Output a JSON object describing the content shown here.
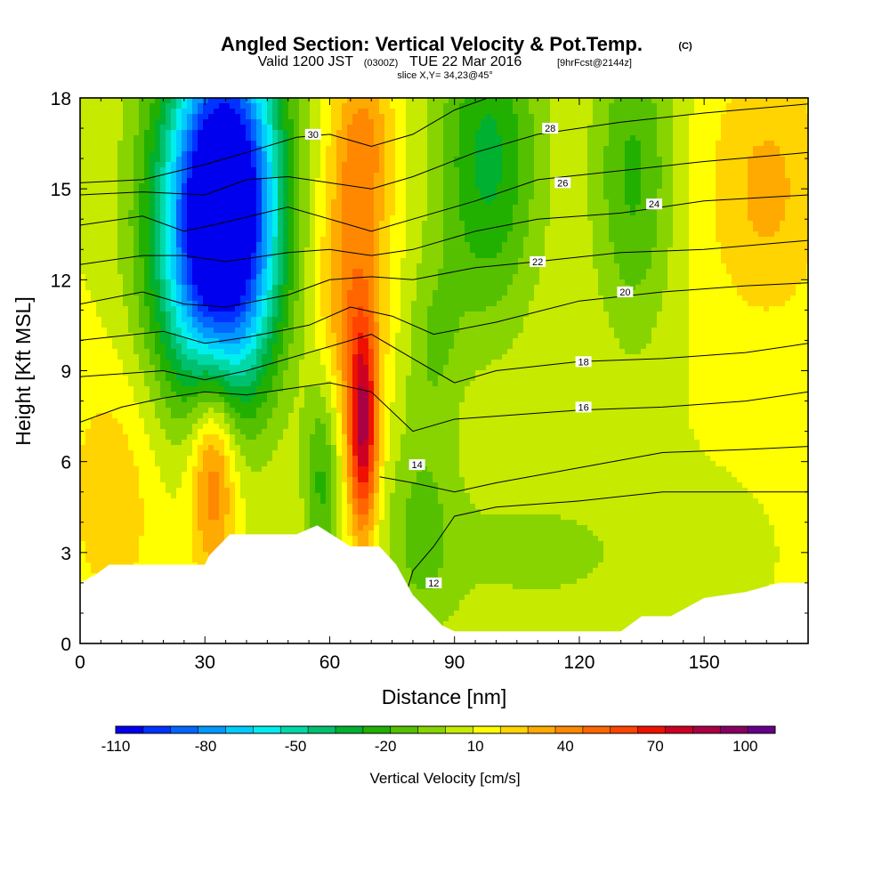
{
  "chart_data": {
    "type": "heatmap",
    "title": "Angled Section: Vertical Velocity & Pot.Temp.",
    "title_mark": "(C)",
    "subtitle_valid": "Valid 1200 JST",
    "subtitle_utc": "(0300Z)",
    "subtitle_date": "TUE 22 Mar 2016",
    "subtitle_fcst": "[9hrFcst@2144z]",
    "slice_label": "slice X,Y= 34,23@45°",
    "xlabel": "Distance [nm]",
    "ylabel": "Height [Kft MSL]",
    "xlim": [
      0,
      175
    ],
    "ylim": [
      0,
      18
    ],
    "x_ticks": [
      0,
      30,
      60,
      90,
      120,
      150
    ],
    "x_tick_labels": [
      "0",
      "30",
      "60",
      "90",
      "120",
      "150"
    ],
    "y_ticks": [
      0,
      3,
      6,
      9,
      12,
      15,
      18
    ],
    "y_tick_labels": [
      "0",
      "3",
      "6",
      "9",
      "12",
      "15",
      "18"
    ],
    "colorbar": {
      "label": "Vertical Velocity [cm/s]",
      "colors": [
        "#0000ee",
        "#0033ff",
        "#0066ff",
        "#0099ff",
        "#00ccff",
        "#00eeee",
        "#00d8a8",
        "#00c070",
        "#00b030",
        "#22b000",
        "#55c000",
        "#88d400",
        "#c6ea00",
        "#ffff00",
        "#ffd400",
        "#ffaa00",
        "#ff8800",
        "#ff6600",
        "#ff4400",
        "#ee1100",
        "#cc0022",
        "#aa0044",
        "#88005f",
        "#660088"
      ],
      "tick_values": [
        -110,
        -80,
        -50,
        -20,
        10,
        40,
        70,
        100
      ],
      "tick_labels": [
        "-110",
        "-80",
        "-50",
        "-20",
        "10",
        "40",
        "70",
        "100"
      ],
      "range": [
        -110,
        110
      ]
    },
    "terrain_kft": [
      [
        0,
        2.0
      ],
      [
        4,
        2.3
      ],
      [
        7,
        2.6
      ],
      [
        30,
        2.6
      ],
      [
        31,
        2.9
      ],
      [
        36,
        3.6
      ],
      [
        52,
        3.6
      ],
      [
        57,
        3.9
      ],
      [
        65,
        3.2
      ],
      [
        72,
        3.2
      ],
      [
        76,
        2.6
      ],
      [
        80,
        1.6
      ],
      [
        87,
        0.6
      ],
      [
        90,
        0.4
      ],
      [
        130,
        0.4
      ],
      [
        135,
        0.9
      ],
      [
        142,
        0.9
      ],
      [
        150,
        1.5
      ],
      [
        160,
        1.7
      ],
      [
        168,
        2.0
      ],
      [
        175,
        2.0
      ]
    ],
    "velocity_features": [
      {
        "x": 36,
        "y": 15.5,
        "w": -100,
        "sx": 9,
        "sy": 4.0
      },
      {
        "x": 33,
        "y": 12.0,
        "w": -60,
        "sx": 10,
        "sy": 3.5
      },
      {
        "x": 25,
        "y": 15.0,
        "w": -25,
        "sx": 10,
        "sy": 4.0
      },
      {
        "x": 58,
        "y": 5.5,
        "w": -30,
        "sx": 3,
        "sy": 2.5
      },
      {
        "x": 68,
        "y": 7.0,
        "w": 70,
        "sx": 2.5,
        "sy": 2.5
      },
      {
        "x": 65,
        "y": 11.5,
        "w": 30,
        "sx": 6,
        "sy": 3.0
      },
      {
        "x": 68,
        "y": 16.5,
        "w": 28,
        "sx": 5,
        "sy": 2.0
      },
      {
        "x": 32,
        "y": 6.0,
        "w": 45,
        "sx": 4,
        "sy": 2.5
      },
      {
        "x": 8,
        "y": 5.0,
        "w": 15,
        "sx": 8,
        "sy": 3.0
      },
      {
        "x": 98,
        "y": 16.0,
        "w": -40,
        "sx": 9,
        "sy": 4.0
      },
      {
        "x": 133,
        "y": 15.5,
        "w": -30,
        "sx": 7,
        "sy": 4.0
      },
      {
        "x": 82,
        "y": 4.0,
        "w": -18,
        "sx": 6,
        "sy": 3.0
      },
      {
        "x": 110,
        "y": 3.0,
        "w": -12,
        "sx": 25,
        "sy": 2.0
      },
      {
        "x": 85,
        "y": 10.0,
        "w": -15,
        "sx": 5,
        "sy": 2.0
      },
      {
        "x": 165,
        "y": 15.0,
        "w": 20,
        "sx": 10,
        "sy": 3.0
      }
    ],
    "theta_contours": [
      {
        "label": "12",
        "points": [
          [
            76,
            0.5
          ],
          [
            80,
            2.4
          ],
          [
            85,
            3.2
          ],
          [
            90,
            4.2
          ],
          [
            100,
            4.5
          ],
          [
            120,
            4.7
          ],
          [
            140,
            5.0
          ],
          [
            175,
            5.0
          ]
        ],
        "label_at": [
          85,
          2.0
        ]
      },
      {
        "label": "14",
        "points": [
          [
            72,
            5.5
          ],
          [
            80,
            5.3
          ],
          [
            90,
            5.0
          ],
          [
            100,
            5.3
          ],
          [
            120,
            5.8
          ],
          [
            140,
            6.3
          ],
          [
            160,
            6.4
          ],
          [
            175,
            6.5
          ]
        ],
        "label_at": [
          81,
          5.9
        ]
      },
      {
        "label": "16",
        "points": [
          [
            0,
            7.3
          ],
          [
            10,
            7.8
          ],
          [
            20,
            8.1
          ],
          [
            30,
            8.3
          ],
          [
            40,
            8.2
          ],
          [
            50,
            8.4
          ],
          [
            60,
            8.6
          ],
          [
            70,
            8.3
          ],
          [
            80,
            7.0
          ],
          [
            90,
            7.4
          ],
          [
            100,
            7.5
          ],
          [
            120,
            7.7
          ],
          [
            140,
            7.8
          ],
          [
            160,
            8.0
          ],
          [
            175,
            8.3
          ]
        ],
        "label_at": [
          121,
          7.8
        ]
      },
      {
        "label": "18",
        "points": [
          [
            0,
            8.8
          ],
          [
            20,
            9.0
          ],
          [
            30,
            8.7
          ],
          [
            40,
            9.0
          ],
          [
            60,
            9.8
          ],
          [
            70,
            10.2
          ],
          [
            80,
            9.4
          ],
          [
            90,
            8.6
          ],
          [
            100,
            9.0
          ],
          [
            120,
            9.3
          ],
          [
            140,
            9.4
          ],
          [
            160,
            9.6
          ],
          [
            175,
            9.9
          ]
        ],
        "label_at": [
          121,
          9.3
        ]
      },
      {
        "label": "20",
        "points": [
          [
            0,
            10.0
          ],
          [
            20,
            10.3
          ],
          [
            30,
            9.9
          ],
          [
            40,
            10.1
          ],
          [
            55,
            10.5
          ],
          [
            65,
            11.1
          ],
          [
            75,
            10.8
          ],
          [
            85,
            10.2
          ],
          [
            100,
            10.6
          ],
          [
            120,
            11.3
          ],
          [
            140,
            11.6
          ],
          [
            160,
            11.8
          ],
          [
            175,
            11.9
          ]
        ],
        "label_at": [
          131,
          11.6
        ]
      },
      {
        "label": "22",
        "points": [
          [
            0,
            11.2
          ],
          [
            15,
            11.6
          ],
          [
            25,
            11.2
          ],
          [
            35,
            11.1
          ],
          [
            50,
            11.5
          ],
          [
            60,
            12.0
          ],
          [
            70,
            12.1
          ],
          [
            80,
            12.0
          ],
          [
            95,
            12.4
          ],
          [
            110,
            12.6
          ],
          [
            130,
            12.9
          ],
          [
            150,
            13.0
          ],
          [
            175,
            13.3
          ]
        ],
        "label_at": [
          110,
          12.6
        ]
      },
      {
        "label": "24",
        "points": [
          [
            0,
            12.5
          ],
          [
            15,
            12.8
          ],
          [
            25,
            12.8
          ],
          [
            35,
            12.6
          ],
          [
            50,
            12.9
          ],
          [
            60,
            13.0
          ],
          [
            70,
            12.8
          ],
          [
            80,
            13.0
          ],
          [
            95,
            13.6
          ],
          [
            110,
            14.0
          ],
          [
            130,
            14.2
          ],
          [
            150,
            14.6
          ],
          [
            175,
            14.8
          ]
        ],
        "label_at": [
          138,
          14.5
        ]
      },
      {
        "label": "26",
        "points": [
          [
            0,
            13.8
          ],
          [
            15,
            14.1
          ],
          [
            25,
            13.6
          ],
          [
            35,
            13.9
          ],
          [
            50,
            14.4
          ],
          [
            60,
            14.0
          ],
          [
            70,
            13.6
          ],
          [
            80,
            14.0
          ],
          [
            95,
            14.6
          ],
          [
            110,
            15.3
          ],
          [
            130,
            15.6
          ],
          [
            150,
            15.9
          ],
          [
            175,
            16.2
          ]
        ],
        "label_at": [
          116,
          15.2
        ]
      },
      {
        "label": "28",
        "points": [
          [
            0,
            14.8
          ],
          [
            15,
            14.9
          ],
          [
            30,
            14.8
          ],
          [
            40,
            15.3
          ],
          [
            50,
            15.4
          ],
          [
            60,
            15.2
          ],
          [
            70,
            15.0
          ],
          [
            80,
            15.4
          ],
          [
            95,
            16.2
          ],
          [
            110,
            16.8
          ],
          [
            130,
            17.2
          ],
          [
            150,
            17.5
          ],
          [
            175,
            17.8
          ]
        ],
        "label_at": [
          113,
          17.0
        ]
      },
      {
        "label": "30",
        "points": [
          [
            0,
            15.2
          ],
          [
            15,
            15.3
          ],
          [
            30,
            15.8
          ],
          [
            40,
            16.2
          ],
          [
            52,
            16.7
          ],
          [
            60,
            16.8
          ],
          [
            70,
            16.4
          ],
          [
            80,
            16.8
          ],
          [
            90,
            17.6
          ],
          [
            98,
            18.0
          ]
        ],
        "label_at": [
          56,
          16.8
        ]
      }
    ]
  }
}
